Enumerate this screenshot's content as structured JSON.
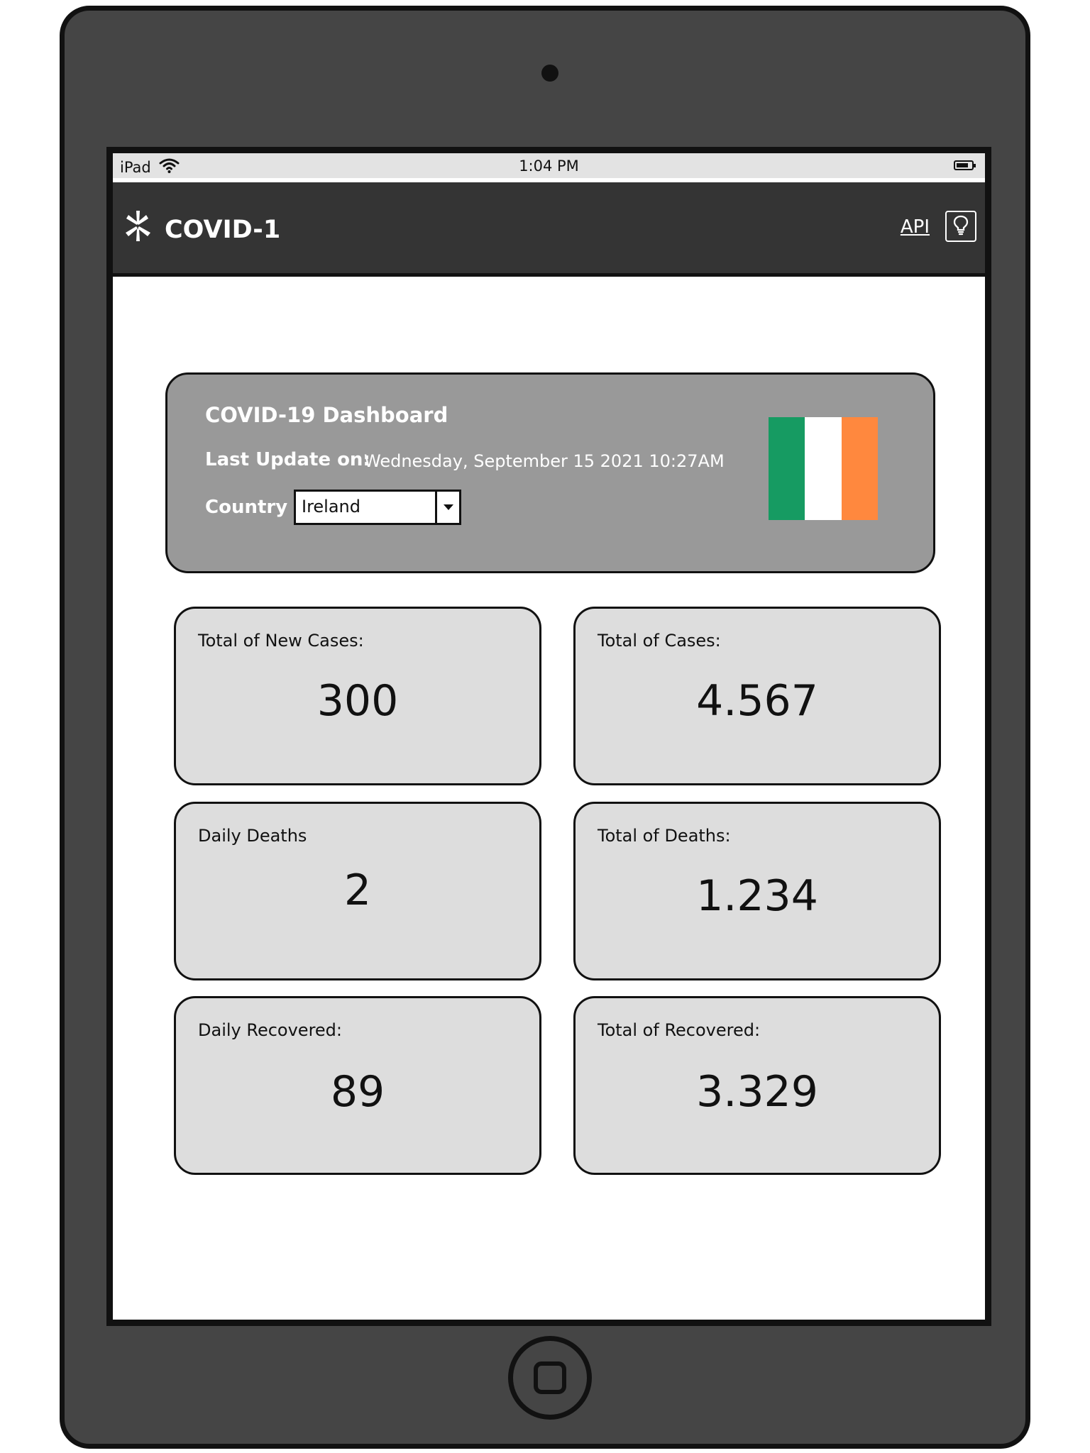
{
  "device": {
    "name": "iPad",
    "time": "1:04 PM",
    "icons": {
      "wifi": "wifi-icon",
      "battery": "battery-icon",
      "camera": "camera-icon",
      "home": "home-button-icon"
    }
  },
  "header": {
    "title": "COVID-1",
    "api_link": "API",
    "icons": {
      "logo": "asterisk-logo-icon",
      "action": "lightbulb-icon"
    },
    "background": "#343434",
    "text_color": "#ffffff"
  },
  "dashboard": {
    "title": "COVID-19 Dashboard",
    "last_update_label": "Last Update on:",
    "last_update_value": "Wednesday, September 15 2021 10:27AM",
    "country_label": "Country",
    "selected_country": "Ireland",
    "flag": {
      "name": "ireland-flag",
      "colors": [
        "#169b62",
        "#ffffff",
        "#ff883e"
      ]
    }
  },
  "stats": [
    {
      "label": "Total of New Cases:",
      "value": "300"
    },
    {
      "label": "Total of Cases:",
      "value": "4.567"
    },
    {
      "label": "Daily Deaths",
      "value": "2"
    },
    {
      "label": "Total of Deaths:",
      "value": "1.234"
    },
    {
      "label": "Daily Recovered:",
      "value": "89"
    },
    {
      "label": "Total of Recovered:",
      "value": "3.329"
    }
  ],
  "colors": {
    "device_frame": "#454545",
    "summary_card": "#999999",
    "stat_card": "#dddddd",
    "outline": "#111111"
  }
}
